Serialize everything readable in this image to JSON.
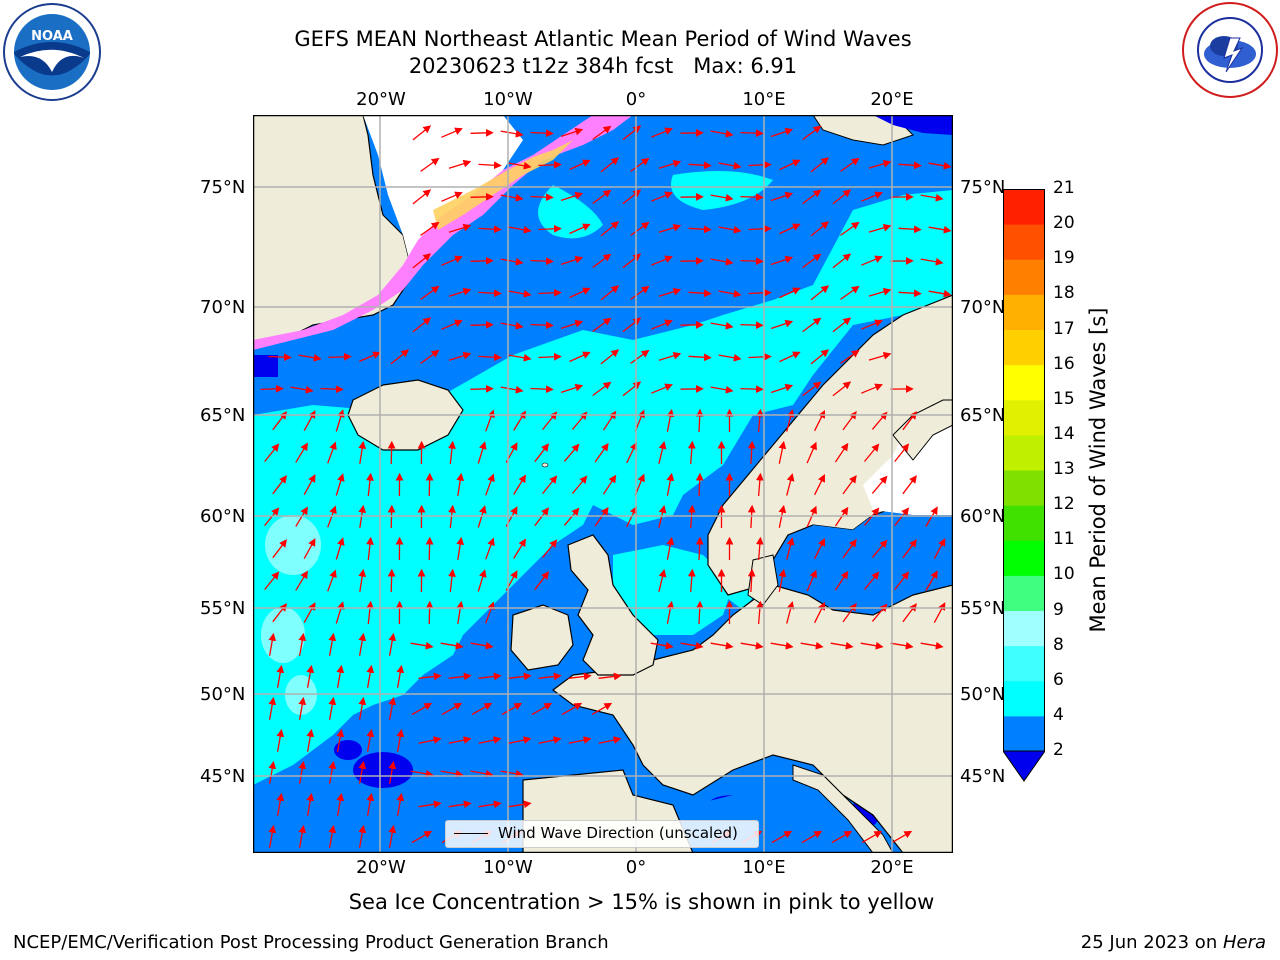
{
  "header": {
    "title_line1": "GEFS MEAN Northeast Atlantic Mean Period of Wind Waves",
    "title_line2": "20230623 t12z 384h fcst   Max: 6.91"
  },
  "logos": {
    "left_name": "NOAA",
    "right_name": "NATIONAL WEATHER SERVICE"
  },
  "map": {
    "lon_labels": [
      "20°W",
      "10°W",
      "0°",
      "10°E",
      "20°E"
    ],
    "lat_labels": [
      "75°N",
      "70°N",
      "65°N",
      "60°N",
      "55°N",
      "50°N",
      "45°N"
    ],
    "legend_label": "Wind Wave Direction (unscaled)",
    "colors": {
      "land": "#efedd9",
      "ice_white": "#ffffff",
      "band_2_4": "#0080ff",
      "band_4_6": "#00ffff",
      "band_below_2": "#0000ee",
      "arrow": "#ff0000",
      "grid": "#b0b0b0"
    }
  },
  "colorbar": {
    "label": "Mean Period of Wind Waves [s]",
    "ticks": [
      "2",
      "4",
      "6",
      "8",
      "9",
      "10",
      "11",
      "12",
      "13",
      "14",
      "15",
      "16",
      "17",
      "18",
      "19",
      "20",
      "21"
    ],
    "colors": [
      "#0080ff",
      "#00ffff",
      "#40ffff",
      "#a0ffff",
      "#40ff80",
      "#00ff00",
      "#40e000",
      "#80e000",
      "#c0f000",
      "#e0f000",
      "#ffff00",
      "#ffd000",
      "#ffb000",
      "#ff8000",
      "#ff5000",
      "#ff2000"
    ],
    "extend_color": "#0000ee"
  },
  "footer": {
    "subtitle": "Sea Ice Concentration > 15% is shown in pink to yellow",
    "left": "NCEP/EMC/Verification Post Processing Product Generation Branch",
    "right_date": "25 Jun 2023 on ",
    "right_host": "Hera"
  }
}
